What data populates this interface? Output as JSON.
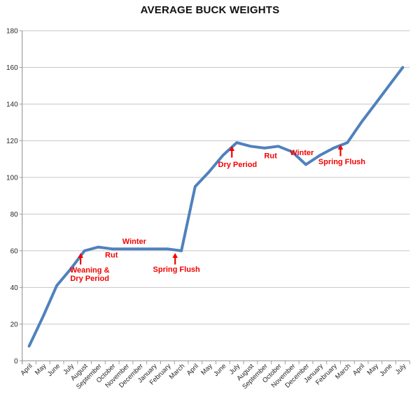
{
  "chart_data": {
    "type": "line",
    "title": "AVERAGE BUCK WEIGHTS",
    "xlabel": "",
    "ylabel": "",
    "ylim": [
      0,
      180
    ],
    "ytick_step": 20,
    "grid": true,
    "legend": "none",
    "line_color": "#4f81bd",
    "gridline_color": "#c6c6c6",
    "axis_color": "#9d9d9d",
    "tick_label_color": "#262626",
    "annotation_color": "#f20000",
    "categories": [
      "April",
      "May",
      "June",
      "July",
      "August",
      "September",
      "October",
      "November",
      "December",
      "January",
      "February",
      "March",
      "April",
      "May",
      "June",
      "July",
      "August",
      "September",
      "October",
      "November",
      "December",
      "January",
      "February",
      "March",
      "April",
      "May",
      "June",
      "July"
    ],
    "values": [
      8,
      24,
      41,
      50,
      60,
      62,
      61,
      61,
      61,
      61,
      61,
      60,
      95,
      103,
      112,
      119,
      117,
      116,
      117,
      114,
      107,
      112,
      116,
      119,
      130,
      140,
      150,
      160
    ],
    "annotations": [
      {
        "lines": [
          "Weaning &",
          "Dry Period"
        ],
        "text_x_index": 4.88,
        "text_value": 49.7,
        "arrow": {
          "x_index": 4.22,
          "tip_value": 58.8
        }
      },
      {
        "lines": [
          "Rut"
        ],
        "text_x_index": 6.45,
        "text_value": 57.9,
        "arrow": null
      },
      {
        "lines": [
          "Winter"
        ],
        "text_x_index": 8.1,
        "text_value": 65.2,
        "arrow": null
      },
      {
        "lines": [
          "Spring Flush"
        ],
        "text_x_index": 11.15,
        "text_value": 50.0,
        "arrow": {
          "x_index": 11.05,
          "tip_value": 58.8
        }
      },
      {
        "lines": [
          "Dry Period"
        ],
        "text_x_index": 15.56,
        "text_value": 107.2,
        "arrow": {
          "x_index": 15.15,
          "tip_value": 117.1
        }
      },
      {
        "lines": [
          "Rut"
        ],
        "text_x_index": 17.95,
        "text_value": 112.0,
        "arrow": null
      },
      {
        "lines": [
          "Winter"
        ],
        "text_x_index": 20.21,
        "text_value": 113.7,
        "arrow": null
      },
      {
        "lines": [
          "Spring Flush"
        ],
        "text_x_index": 23.1,
        "text_value": 108.7,
        "arrow": {
          "x_index": 23.0,
          "tip_value": 117.9
        }
      }
    ]
  }
}
